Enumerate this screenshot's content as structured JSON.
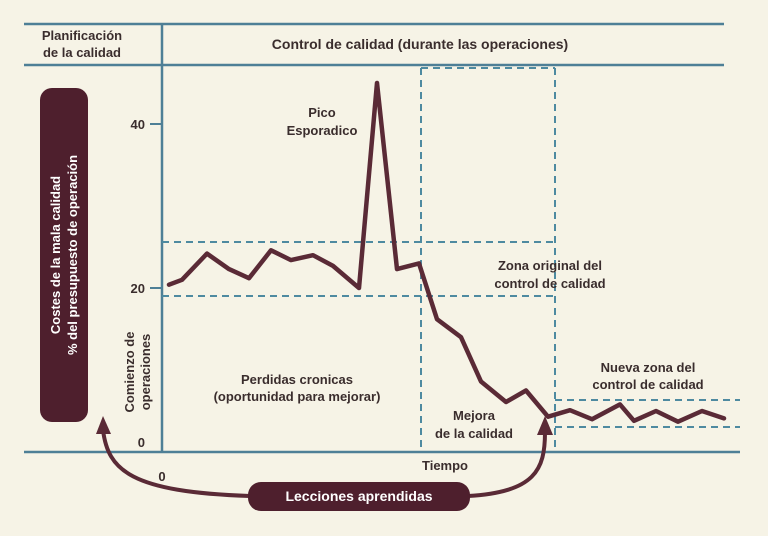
{
  "header": {
    "left_title_line1": "Planificación",
    "left_title_line2": "de la calidad",
    "right_title": "Control de calidad (durante las operaciones)"
  },
  "y_axis": {
    "label_line1": "Costes de la mala calidad",
    "label_line2": "% del presupuesto de operación",
    "ticks": [
      "40",
      "20",
      "0"
    ]
  },
  "x_axis": {
    "origin_label": "0",
    "label": "Tiempo"
  },
  "start_label_line1": "Comienzo de",
  "start_label_line2": "operaciones",
  "annotations": {
    "spike_line1": "Pico",
    "spike_line2": "Esporadico",
    "original_zone_line1": "Zona original del",
    "original_zone_line2": "control de calidad",
    "chronic_line1": "Perdidas cronicas",
    "chronic_line2": "(oportunidad para mejorar)",
    "improvement_line1": "Mejora",
    "improvement_line2": "de la calidad",
    "new_zone_line1": "Nueva zona del",
    "new_zone_line2": "control de calidad"
  },
  "lessons_label": "Lecciones aprendidas",
  "colors": {
    "background": "#f6f3e6",
    "axis_blue": "#4e7f96",
    "dashed_blue": "#4e8aa0",
    "curve": "#5a2a36",
    "pill": "#4e1f2d"
  },
  "chart_data": {
    "type": "line",
    "ylim": [
      0,
      45
    ],
    "y_ticks": [
      0,
      20,
      40
    ],
    "series": [
      {
        "values": [
          20.4,
          21.0,
          24.2,
          22.3,
          21.2,
          24.6,
          23.4,
          24.0,
          22.7,
          20.0,
          45.0,
          22.3,
          23.0,
          16.2,
          14.0,
          8.6,
          6.1,
          7.5,
          4.3,
          5.1,
          4.0,
          5.8,
          3.8,
          5.0,
          3.7,
          5.0,
          4.1
        ]
      }
    ],
    "original_zone": [
      19.0,
      25.8
    ],
    "new_zone": [
      2.9,
      6.2
    ]
  }
}
